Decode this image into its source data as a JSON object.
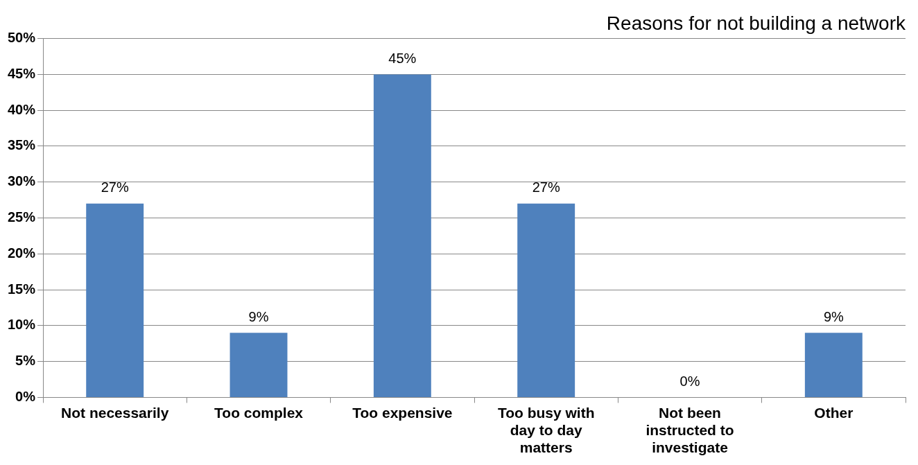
{
  "chart_data": {
    "type": "bar",
    "title": "Reasons for not building a network",
    "categories": [
      "Not necessarily",
      "Too complex",
      "Too expensive",
      "Too busy with day to day matters",
      "Not been instructed to investigate",
      "Other"
    ],
    "values": [
      27,
      9,
      45,
      27,
      0,
      9
    ],
    "color": "#4f81bd",
    "value_labels": [
      "27%",
      "9%",
      "45%",
      "27%",
      "0%",
      "9%"
    ],
    "ylim": [
      0,
      50
    ],
    "yticks": [
      {
        "value": 0,
        "label": "0%"
      },
      {
        "value": 5,
        "label": "5%"
      },
      {
        "value": 10,
        "label": "10%"
      },
      {
        "value": 15,
        "label": "15%"
      },
      {
        "value": 20,
        "label": "20%"
      },
      {
        "value": 25,
        "label": "25%"
      },
      {
        "value": 30,
        "label": "30%"
      },
      {
        "value": 35,
        "label": "35%"
      },
      {
        "value": 40,
        "label": "40%"
      },
      {
        "value": 45,
        "label": "45%"
      },
      {
        "value": 50,
        "label": "50%"
      }
    ],
    "grid": "y",
    "legend": false
  }
}
